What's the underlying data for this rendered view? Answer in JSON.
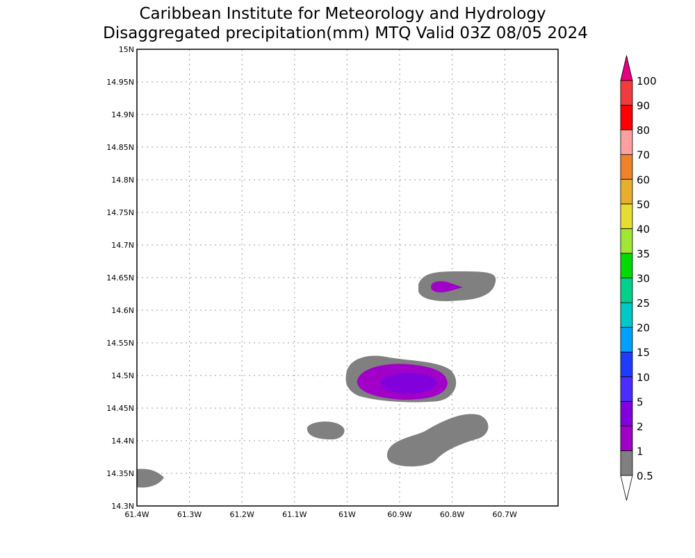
{
  "header": {
    "title_line1": "Caribbean Institute for Meteorology and Hydrology",
    "title_line2": "Disaggregated precipitation(mm) MTQ Valid 03Z 08/05 2024"
  },
  "map": {
    "lon_range": [
      -61.4,
      -60.6
    ],
    "lat_range": [
      14.3,
      15.0
    ],
    "lon_ticks": [
      {
        "value": -61.4,
        "label": "61.4W"
      },
      {
        "value": -61.3,
        "label": "61.3W"
      },
      {
        "value": -61.2,
        "label": "61.2W"
      },
      {
        "value": -61.1,
        "label": "61.1W"
      },
      {
        "value": -61.0,
        "label": "61W"
      },
      {
        "value": -60.9,
        "label": "60.9W"
      },
      {
        "value": -60.8,
        "label": "60.8W"
      },
      {
        "value": -60.7,
        "label": "60.7W"
      }
    ],
    "lat_ticks": [
      {
        "value": 14.3,
        "label": "14.3N"
      },
      {
        "value": 14.35,
        "label": "14.35N"
      },
      {
        "value": 14.4,
        "label": "14.4N"
      },
      {
        "value": 14.45,
        "label": "14.45N"
      },
      {
        "value": 14.5,
        "label": "14.5N"
      },
      {
        "value": 14.55,
        "label": "14.55N"
      },
      {
        "value": 14.6,
        "label": "14.6N"
      },
      {
        "value": 14.65,
        "label": "14.65N"
      },
      {
        "value": 14.7,
        "label": "14.7N"
      },
      {
        "value": 14.75,
        "label": "14.75N"
      },
      {
        "value": 14.8,
        "label": "14.8N"
      },
      {
        "value": 14.85,
        "label": "14.85N"
      },
      {
        "value": 14.9,
        "label": "14.9N"
      },
      {
        "value": 14.95,
        "label": "14.95N"
      },
      {
        "value": 15.0,
        "label": "15N"
      }
    ]
  },
  "colorbar": {
    "levels": [
      "0.5",
      "1",
      "2",
      "5",
      "10",
      "15",
      "20",
      "25",
      "30",
      "35",
      "40",
      "50",
      "60",
      "70",
      "80",
      "90",
      "100"
    ],
    "colors": [
      "#808080",
      "#a000c8",
      "#8200dc",
      "#4b2dff",
      "#1e3cff",
      "#00a0ff",
      "#00c8c8",
      "#00d28c",
      "#00dc00",
      "#a0e632",
      "#e6dc32",
      "#e6af2d",
      "#f08228",
      "#ffa0a0",
      "#ff0000",
      "#f03c3c"
    ],
    "over_color": "#e6007f",
    "under_color": "#ffffff"
  }
}
